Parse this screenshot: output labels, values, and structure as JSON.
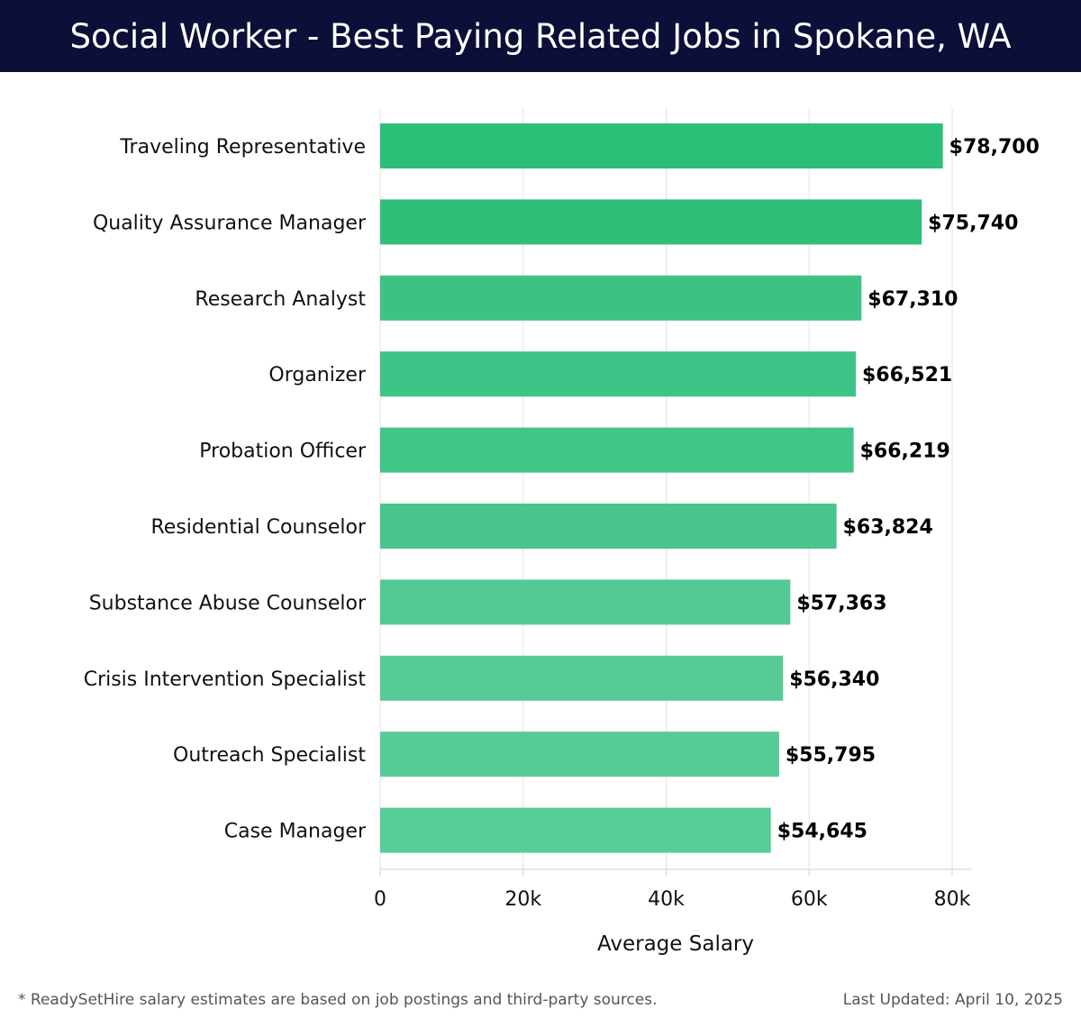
{
  "header": {
    "title": "Social Worker - Best Paying Related Jobs in Spokane, WA"
  },
  "chart_data": {
    "type": "bar",
    "orientation": "horizontal",
    "title": "Social Worker - Best Paying Related Jobs in Spokane, WA",
    "xlabel": "Average Salary",
    "ylabel": "",
    "xlim": [
      0,
      80000
    ],
    "x_ticks": [
      0,
      20000,
      40000,
      60000,
      80000
    ],
    "x_tick_labels": [
      "0",
      "20k",
      "40k",
      "60k",
      "80k"
    ],
    "grid": true,
    "categories": [
      "Traveling Representative",
      "Quality Assurance Manager",
      "Research Analyst",
      "Organizer",
      "Probation Officer",
      "Residential Counselor",
      "Substance Abuse Counselor",
      "Crisis Intervention Specialist",
      "Outreach Specialist",
      "Case Manager"
    ],
    "values": [
      78700,
      75740,
      67310,
      66521,
      66219,
      63824,
      57363,
      56340,
      55795,
      54645
    ],
    "value_labels": [
      "$78,700",
      "$75,740",
      "$67,310",
      "$66,521",
      "$66,219",
      "$63,824",
      "$57,363",
      "$56,340",
      "$55,795",
      "$54,645"
    ],
    "bar_colors": [
      "#2bbf78",
      "#2ebf79",
      "#3cc384",
      "#3ec486",
      "#40c587",
      "#47c58a",
      "#53c993",
      "#56cb95",
      "#57cb95",
      "#58cc96"
    ]
  },
  "footer": {
    "note": "* ReadySetHire salary estimates are based on job postings and third-party sources.",
    "updated": "Last Updated: April 10, 2025"
  }
}
